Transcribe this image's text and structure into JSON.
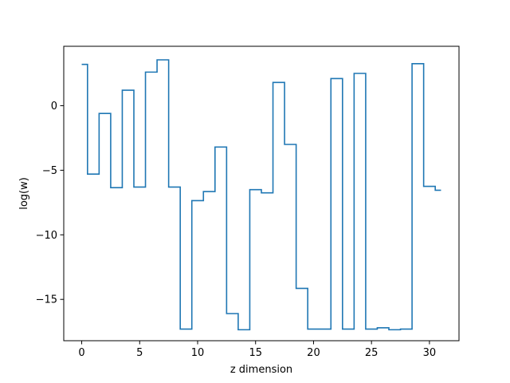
{
  "chart_data": {
    "type": "line",
    "drawstyle": "steps-mid",
    "title": "",
    "xlabel": "z dimension",
    "ylabel": "log(w)",
    "xlim": [
      -1.55,
      32.55
    ],
    "ylim": [
      -18.2,
      4.6
    ],
    "xticks": [
      0,
      5,
      10,
      15,
      20,
      25,
      30
    ],
    "yticks": [
      -15,
      -10,
      -5,
      0
    ],
    "grid": false,
    "legend": "none",
    "line_color": "#1f77b4",
    "x": [
      0,
      1,
      2,
      3,
      4,
      5,
      6,
      7,
      8,
      9,
      10,
      11,
      12,
      13,
      14,
      15,
      16,
      17,
      18,
      19,
      20,
      21,
      22,
      23,
      24,
      25,
      26,
      27,
      28,
      29,
      30,
      31
    ],
    "y": [
      3.2,
      -5.3,
      -0.6,
      -6.35,
      1.2,
      -6.3,
      2.6,
      3.55,
      -6.3,
      -17.3,
      -7.35,
      -6.65,
      -3.2,
      -16.1,
      -17.35,
      -6.5,
      -6.75,
      1.8,
      -3.0,
      -14.15,
      -17.3,
      -17.3,
      2.1,
      -17.3,
      2.5,
      -17.3,
      -17.2,
      -17.35,
      -17.3,
      3.25,
      -6.25,
      -6.55
    ]
  }
}
